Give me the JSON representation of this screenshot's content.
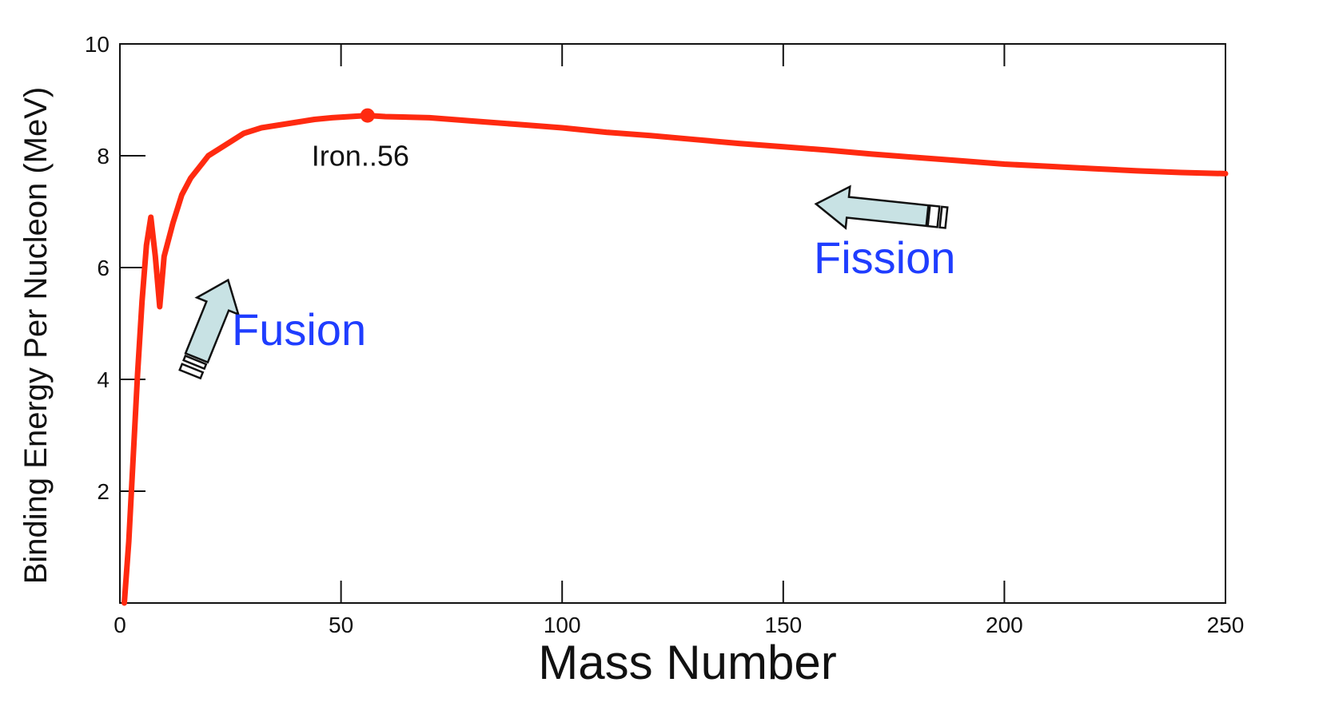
{
  "chart_data": {
    "type": "line",
    "title": "",
    "xlabel": "Mass Number",
    "ylabel": "Binding Energy Per Nucleon (MeV)",
    "xlim": [
      0,
      250
    ],
    "ylim": [
      0,
      10
    ],
    "x_ticks": [
      0,
      50,
      100,
      150,
      200,
      250
    ],
    "x_tick_labels": [
      "0",
      "50",
      "100",
      "150",
      "200",
      "250"
    ],
    "y_ticks": [
      2,
      4,
      6,
      8,
      10
    ],
    "y_tick_labels": [
      "2",
      "4",
      "6",
      "8",
      "10"
    ],
    "grid": false,
    "series": [
      {
        "color": "#ff2a10",
        "x": [
          1,
          2,
          3,
          4,
          5,
          6,
          7,
          8,
          9,
          10,
          12,
          14,
          16,
          18,
          20,
          24,
          28,
          32,
          36,
          40,
          44,
          48,
          52,
          56,
          60,
          70,
          80,
          90,
          100,
          110,
          120,
          130,
          140,
          150,
          160,
          170,
          180,
          190,
          200,
          210,
          220,
          230,
          240,
          250
        ],
        "y": [
          0.0,
          1.1,
          2.6,
          4.1,
          5.4,
          6.4,
          6.9,
          6.2,
          5.3,
          6.2,
          6.8,
          7.3,
          7.6,
          7.8,
          8.0,
          8.2,
          8.4,
          8.5,
          8.55,
          8.6,
          8.65,
          8.68,
          8.7,
          8.72,
          8.7,
          8.68,
          8.62,
          8.56,
          8.5,
          8.42,
          8.36,
          8.29,
          8.22,
          8.16,
          8.1,
          8.03,
          7.97,
          7.91,
          7.85,
          7.81,
          7.77,
          7.73,
          7.7,
          7.68
        ]
      }
    ],
    "annotations": {
      "peak": {
        "text": "Iron..56",
        "x": 56,
        "y": 8.72
      },
      "fusion": {
        "text": "Fusion",
        "color": "#1f3dff"
      },
      "fission": {
        "text": "Fission",
        "color": "#1f3dff"
      }
    },
    "arrow_fill": "#c8e2e4"
  }
}
